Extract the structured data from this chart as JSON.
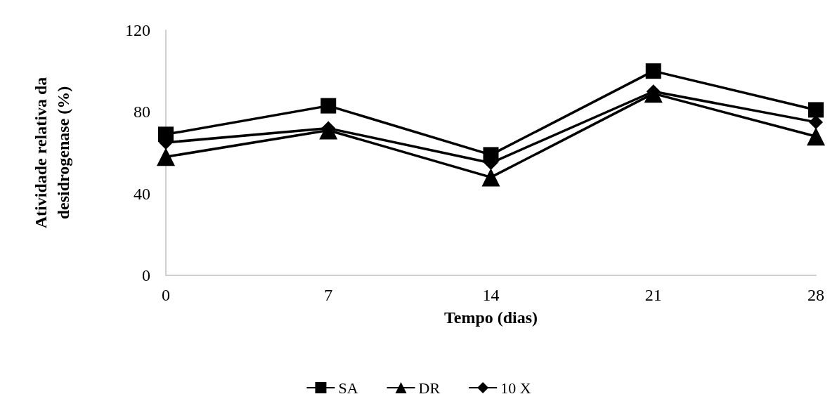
{
  "chart_data": {
    "type": "line",
    "xlabel": "Tempo (dias)",
    "ylabel": "Atividade relativa da\ndesidrogenase (%)",
    "categories": [
      "0",
      "7",
      "14",
      "21",
      "28"
    ],
    "series": [
      {
        "name": "SA",
        "color": "#000000",
        "marker": "square",
        "values": [
          69,
          83,
          59,
          100,
          81
        ]
      },
      {
        "name": "DR",
        "color": "#000000",
        "marker": "triangle",
        "values": [
          58,
          71,
          48,
          89,
          68
        ]
      },
      {
        "name": "10 X",
        "color": "#000000",
        "marker": "diamond",
        "values": [
          65,
          72,
          55,
          90,
          75
        ]
      }
    ],
    "ylim": [
      0,
      120
    ],
    "yticks": [
      0,
      40,
      80,
      120
    ],
    "grid": false,
    "legend": "bottom",
    "line_style": "solid"
  }
}
